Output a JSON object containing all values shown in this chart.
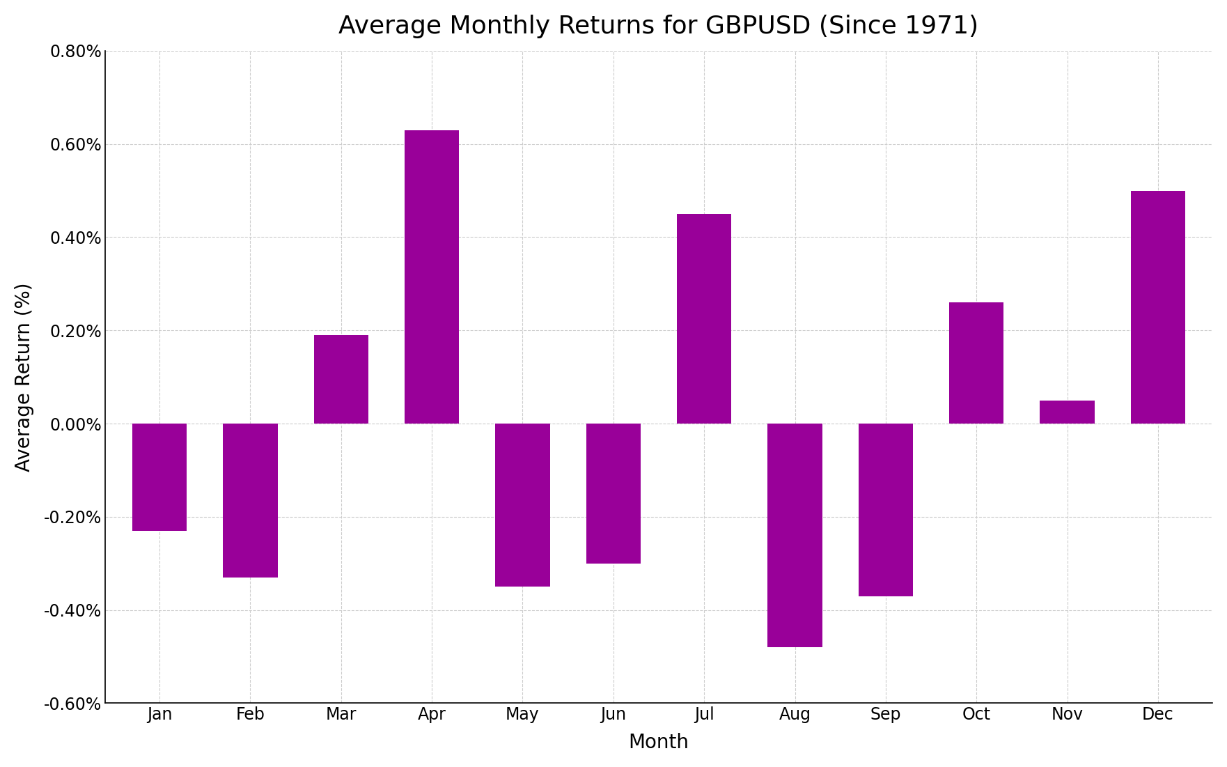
{
  "title": "Average Monthly Returns for GBPUSD (Since 1971)",
  "xlabel": "Month",
  "ylabel": "Average Return (%)",
  "months": [
    "Jan",
    "Feb",
    "Mar",
    "Apr",
    "May",
    "Jun",
    "Jul",
    "Aug",
    "Sep",
    "Oct",
    "Nov",
    "Dec"
  ],
  "values": [
    -0.23,
    -0.33,
    0.19,
    0.63,
    -0.35,
    -0.3,
    0.45,
    -0.48,
    -0.37,
    0.26,
    0.05,
    0.5
  ],
  "bar_color": "#990099",
  "bar_edge_color": "#990099",
  "ylim": [
    -0.6,
    0.8
  ],
  "yticks": [
    -0.6,
    -0.4,
    -0.2,
    0.0,
    0.2,
    0.4,
    0.6,
    0.8
  ],
  "background_color": "#ffffff",
  "grid_color": "#cccccc",
  "title_fontsize": 26,
  "label_fontsize": 20,
  "tick_fontsize": 17
}
